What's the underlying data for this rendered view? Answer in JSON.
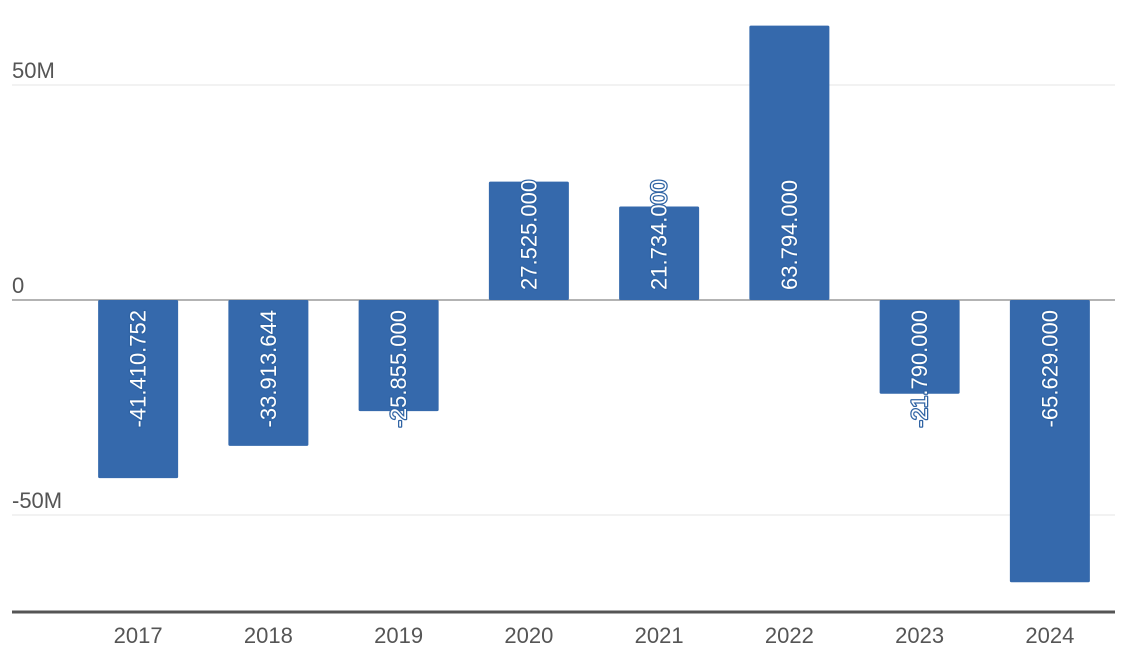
{
  "chart_data": {
    "type": "bar",
    "categories": [
      "2017",
      "2018",
      "2019",
      "2020",
      "2021",
      "2022",
      "2023",
      "2024"
    ],
    "values": [
      -41410752,
      -33913644,
      -25855000,
      27525000,
      21734000,
      63794000,
      -21790000,
      -65629000
    ],
    "data_labels": [
      "-41.410.752",
      "-33.913.644",
      "-25.855.000",
      "27.525.000",
      "21.734.000",
      "63.794.000",
      "-21.790.000",
      "-65.629.000"
    ],
    "y_ticks": [
      {
        "value": 50000000,
        "label": "50M"
      },
      {
        "value": 0,
        "label": "0"
      },
      {
        "value": -50000000,
        "label": "-50M"
      }
    ],
    "title": "",
    "xlabel": "",
    "ylabel": "",
    "ylim": [
      -72000000,
      68000000
    ],
    "grid": true,
    "legend": "none",
    "colors": {
      "bar": "#3569ac",
      "grid": "#e6e6e6",
      "zero_line": "#9a9a9a",
      "axis": "#555555",
      "label_text": "#ffffff"
    }
  }
}
